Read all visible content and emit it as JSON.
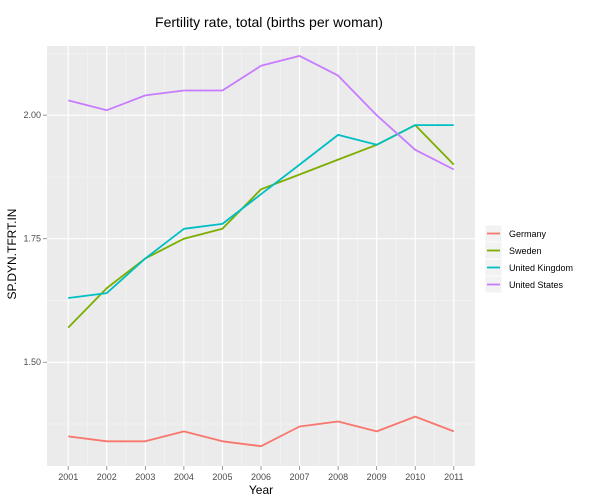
{
  "chart_data": {
    "type": "line",
    "title": "Fertility rate, total (births per woman)",
    "xlabel": "Year",
    "ylabel": "SP.DYN.TFRT.IN",
    "x": [
      2001,
      2002,
      2003,
      2004,
      2005,
      2006,
      2007,
      2008,
      2009,
      2010,
      2011
    ],
    "x_ticks": [
      "2001",
      "2002",
      "2003",
      "2004",
      "2005",
      "2006",
      "2007",
      "2008",
      "2009",
      "2010",
      "2011"
    ],
    "y_ticks": [
      1.5,
      1.75,
      2.0
    ],
    "y_tick_labels": [
      "1.50",
      "1.75",
      "2.00"
    ],
    "ylim": [
      1.29,
      2.14
    ],
    "grid": true,
    "legend_position": "right",
    "series": [
      {
        "name": "Germany",
        "color": "#F8766D",
        "values": [
          1.35,
          1.34,
          1.34,
          1.36,
          1.34,
          1.33,
          1.37,
          1.38,
          1.36,
          1.39,
          1.36
        ]
      },
      {
        "name": "Sweden",
        "color": "#7CAE00",
        "values": [
          1.57,
          1.65,
          1.71,
          1.75,
          1.77,
          1.85,
          1.88,
          1.91,
          1.94,
          1.98,
          1.9
        ]
      },
      {
        "name": "United Kingdom",
        "color": "#00BFC4",
        "values": [
          1.63,
          1.64,
          1.71,
          1.77,
          1.78,
          1.84,
          1.9,
          1.96,
          1.94,
          1.98,
          1.98
        ]
      },
      {
        "name": "United States",
        "color": "#C77CFF",
        "values": [
          2.03,
          2.01,
          2.04,
          2.05,
          2.05,
          2.1,
          2.12,
          2.08,
          2.0,
          1.93,
          1.89
        ]
      }
    ]
  }
}
